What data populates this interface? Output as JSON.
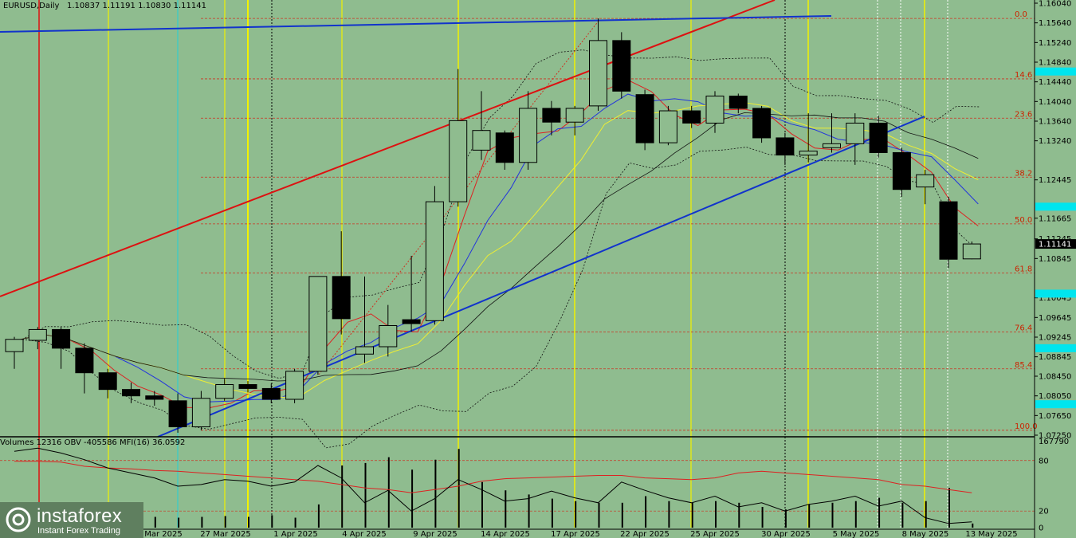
{
  "header": {
    "symbol": "EURUSD,Daily",
    "ohlc": "1.10837 1.11191 1.10830 1.11141"
  },
  "indicator_header": "Volumes 12316  OBV -405586  MFI(16) 36.0592",
  "logo": {
    "brand": "instaforex",
    "tagline": "Instant Forex Trading"
  },
  "colors": {
    "background": "#8fbc8f",
    "bull_candle": "#8fbc8f",
    "bear_candle": "#000000",
    "trend_red": "#dd1111",
    "trend_blue": "#1133cc",
    "fib": "#cc3322",
    "vline_yellow": "#f2f200",
    "vline_cyan": "#33cccc",
    "price_box_cyan": "#00e5ee",
    "mfi_line": "#dd2222",
    "obv_line": "#000000"
  },
  "chart_data": {
    "type": "candlestick",
    "ylim": [
      1.0725,
      1.1604
    ],
    "price_ticks": [
      "1.16040",
      "1.15640",
      "1.15240",
      "1.14840",
      "1.14440",
      "1.14040",
      "1.13640",
      "1.13240",
      "1.12445",
      "1.11665",
      "1.11245",
      "1.10845",
      "1.10045",
      "1.09645",
      "1.09245",
      "1.08845",
      "1.08450",
      "1.08050",
      "1.07650",
      "1.07250"
    ],
    "current_price": "1.11141",
    "x_labels": [
      "24 Mar 2025",
      "27 Mar 2025",
      "1 Apr 2025",
      "4 Apr 2025",
      "9 Apr 2025",
      "14 Apr 2025",
      "17 Apr 2025",
      "22 Apr 2025",
      "25 Apr 2025",
      "30 Apr 2025",
      "5 May 2025",
      "8 May 2025",
      "13 May 2025"
    ],
    "candles": [
      {
        "o": 1.0895,
        "h": 1.0925,
        "l": 1.086,
        "c": 1.092
      },
      {
        "o": 1.0918,
        "h": 1.0945,
        "l": 1.09,
        "c": 1.094
      },
      {
        "o": 1.094,
        "h": 1.0945,
        "l": 1.086,
        "c": 1.0902
      },
      {
        "o": 1.0902,
        "h": 1.0912,
        "l": 1.081,
        "c": 1.0852
      },
      {
        "o": 1.0852,
        "h": 1.086,
        "l": 1.08,
        "c": 1.0818
      },
      {
        "o": 1.0818,
        "h": 1.0832,
        "l": 1.079,
        "c": 1.0805
      },
      {
        "o": 1.0805,
        "h": 1.0815,
        "l": 1.0785,
        "c": 1.0798
      },
      {
        "o": 1.0795,
        "h": 1.081,
        "l": 1.073,
        "c": 1.0742
      },
      {
        "o": 1.0742,
        "h": 1.0815,
        "l": 1.0735,
        "c": 1.08
      },
      {
        "o": 1.08,
        "h": 1.084,
        "l": 1.0795,
        "c": 1.0828
      },
      {
        "o": 1.0828,
        "h": 1.0835,
        "l": 1.0812,
        "c": 1.082
      },
      {
        "o": 1.082,
        "h": 1.083,
        "l": 1.079,
        "c": 1.0798
      },
      {
        "o": 1.0798,
        "h": 1.086,
        "l": 1.079,
        "c": 1.0855
      },
      {
        "o": 1.0855,
        "h": 1.1048,
        "l": 1.0848,
        "c": 1.1048
      },
      {
        "o": 1.1048,
        "h": 1.114,
        "l": 1.093,
        "c": 1.0962
      },
      {
        "o": 1.089,
        "h": 1.1048,
        "l": 1.0872,
        "c": 1.0905
      },
      {
        "o": 1.0905,
        "h": 1.099,
        "l": 1.0885,
        "c": 1.0948
      },
      {
        "o": 1.096,
        "h": 1.109,
        "l": 1.0935,
        "c": 1.0952
      },
      {
        "o": 1.0958,
        "h": 1.1232,
        "l": 1.095,
        "c": 1.12
      },
      {
        "o": 1.12,
        "h": 1.147,
        "l": 1.119,
        "c": 1.1365
      },
      {
        "o": 1.1305,
        "h": 1.1425,
        "l": 1.1285,
        "c": 1.1345
      },
      {
        "o": 1.134,
        "h": 1.1345,
        "l": 1.1265,
        "c": 1.128
      },
      {
        "o": 1.128,
        "h": 1.1425,
        "l": 1.1265,
        "c": 1.139
      },
      {
        "o": 1.139,
        "h": 1.1405,
        "l": 1.1335,
        "c": 1.1362
      },
      {
        "o": 1.1362,
        "h": 1.1395,
        "l": 1.1335,
        "c": 1.139
      },
      {
        "o": 1.1395,
        "h": 1.1573,
        "l": 1.1385,
        "c": 1.1528
      },
      {
        "o": 1.1528,
        "h": 1.1545,
        "l": 1.141,
        "c": 1.1425
      },
      {
        "o": 1.1418,
        "h": 1.1428,
        "l": 1.1305,
        "c": 1.132
      },
      {
        "o": 1.132,
        "h": 1.1395,
        "l": 1.1315,
        "c": 1.1385
      },
      {
        "o": 1.1385,
        "h": 1.1395,
        "l": 1.135,
        "c": 1.136
      },
      {
        "o": 1.136,
        "h": 1.1425,
        "l": 1.134,
        "c": 1.1415
      },
      {
        "o": 1.1415,
        "h": 1.142,
        "l": 1.138,
        "c": 1.139
      },
      {
        "o": 1.139,
        "h": 1.1395,
        "l": 1.132,
        "c": 1.133
      },
      {
        "o": 1.133,
        "h": 1.134,
        "l": 1.1275,
        "c": 1.1295
      },
      {
        "o": 1.1295,
        "h": 1.138,
        "l": 1.128,
        "c": 1.1303
      },
      {
        "o": 1.131,
        "h": 1.138,
        "l": 1.13,
        "c": 1.1318
      },
      {
        "o": 1.1318,
        "h": 1.138,
        "l": 1.1275,
        "c": 1.136
      },
      {
        "o": 1.136,
        "h": 1.1375,
        "l": 1.129,
        "c": 1.13
      },
      {
        "o": 1.13,
        "h": 1.131,
        "l": 1.121,
        "c": 1.1225
      },
      {
        "o": 1.123,
        "h": 1.1265,
        "l": 1.1195,
        "c": 1.1255
      },
      {
        "o": 1.12,
        "h": 1.121,
        "l": 1.1065,
        "c": 1.1083
      },
      {
        "o": 1.10837,
        "h": 1.11191,
        "l": 1.1083,
        "c": 1.11141
      }
    ],
    "fib_levels": [
      {
        "label": "0.0",
        "price": 1.1573
      },
      {
        "label": "14.6",
        "price": 1.145
      },
      {
        "label": "23.6",
        "price": 1.137
      },
      {
        "label": "38.2",
        "price": 1.125
      },
      {
        "label": "50.0",
        "price": 1.1155
      },
      {
        "label": "61.8",
        "price": 1.1055
      },
      {
        "label": "76.4",
        "price": 1.0935
      },
      {
        "label": "85.4",
        "price": 1.086
      },
      {
        "label": "100.0",
        "price": 1.0735
      }
    ],
    "cyan_price_boxes": [
      1.1465,
      1.119,
      1.1013,
      1.0902,
      1.0788
    ],
    "indicator": {
      "volume_max_label": "167790",
      "mfi_levels": [
        "80",
        "20",
        "0"
      ],
      "volumes": [
        0.12,
        0.13,
        0.12,
        0.15,
        0.13,
        0.12,
        0.13,
        0.12,
        0.13,
        0.14,
        0.13,
        0.15,
        0.12,
        0.28,
        0.75,
        0.78,
        0.85,
        0.7,
        0.82,
        0.95,
        0.55,
        0.45,
        0.4,
        0.35,
        0.32,
        0.3,
        0.3,
        0.38,
        0.32,
        0.3,
        0.32,
        0.3,
        0.25,
        0.22,
        0.28,
        0.3,
        0.32,
        0.36,
        0.3,
        0.32,
        0.48,
        0.05
      ],
      "mfi": [
        0.8,
        0.8,
        0.79,
        0.74,
        0.72,
        0.71,
        0.69,
        0.68,
        0.66,
        0.64,
        0.62,
        0.6,
        0.58,
        0.56,
        0.52,
        0.48,
        0.46,
        0.42,
        0.46,
        0.5,
        0.56,
        0.59,
        0.6,
        0.61,
        0.62,
        0.63,
        0.63,
        0.6,
        0.59,
        0.58,
        0.6,
        0.66,
        0.68,
        0.66,
        0.64,
        0.62,
        0.6,
        0.58,
        0.52,
        0.5,
        0.46,
        0.42
      ],
      "obv": [
        0.92,
        0.96,
        0.9,
        0.82,
        0.72,
        0.66,
        0.6,
        0.5,
        0.52,
        0.58,
        0.56,
        0.5,
        0.55,
        0.75,
        0.6,
        0.3,
        0.45,
        0.2,
        0.35,
        0.58,
        0.46,
        0.32,
        0.35,
        0.44,
        0.36,
        0.3,
        0.55,
        0.45,
        0.36,
        0.3,
        0.38,
        0.25,
        0.3,
        0.2,
        0.28,
        0.32,
        0.38,
        0.26,
        0.32,
        0.12,
        0.05,
        0.07
      ]
    }
  }
}
